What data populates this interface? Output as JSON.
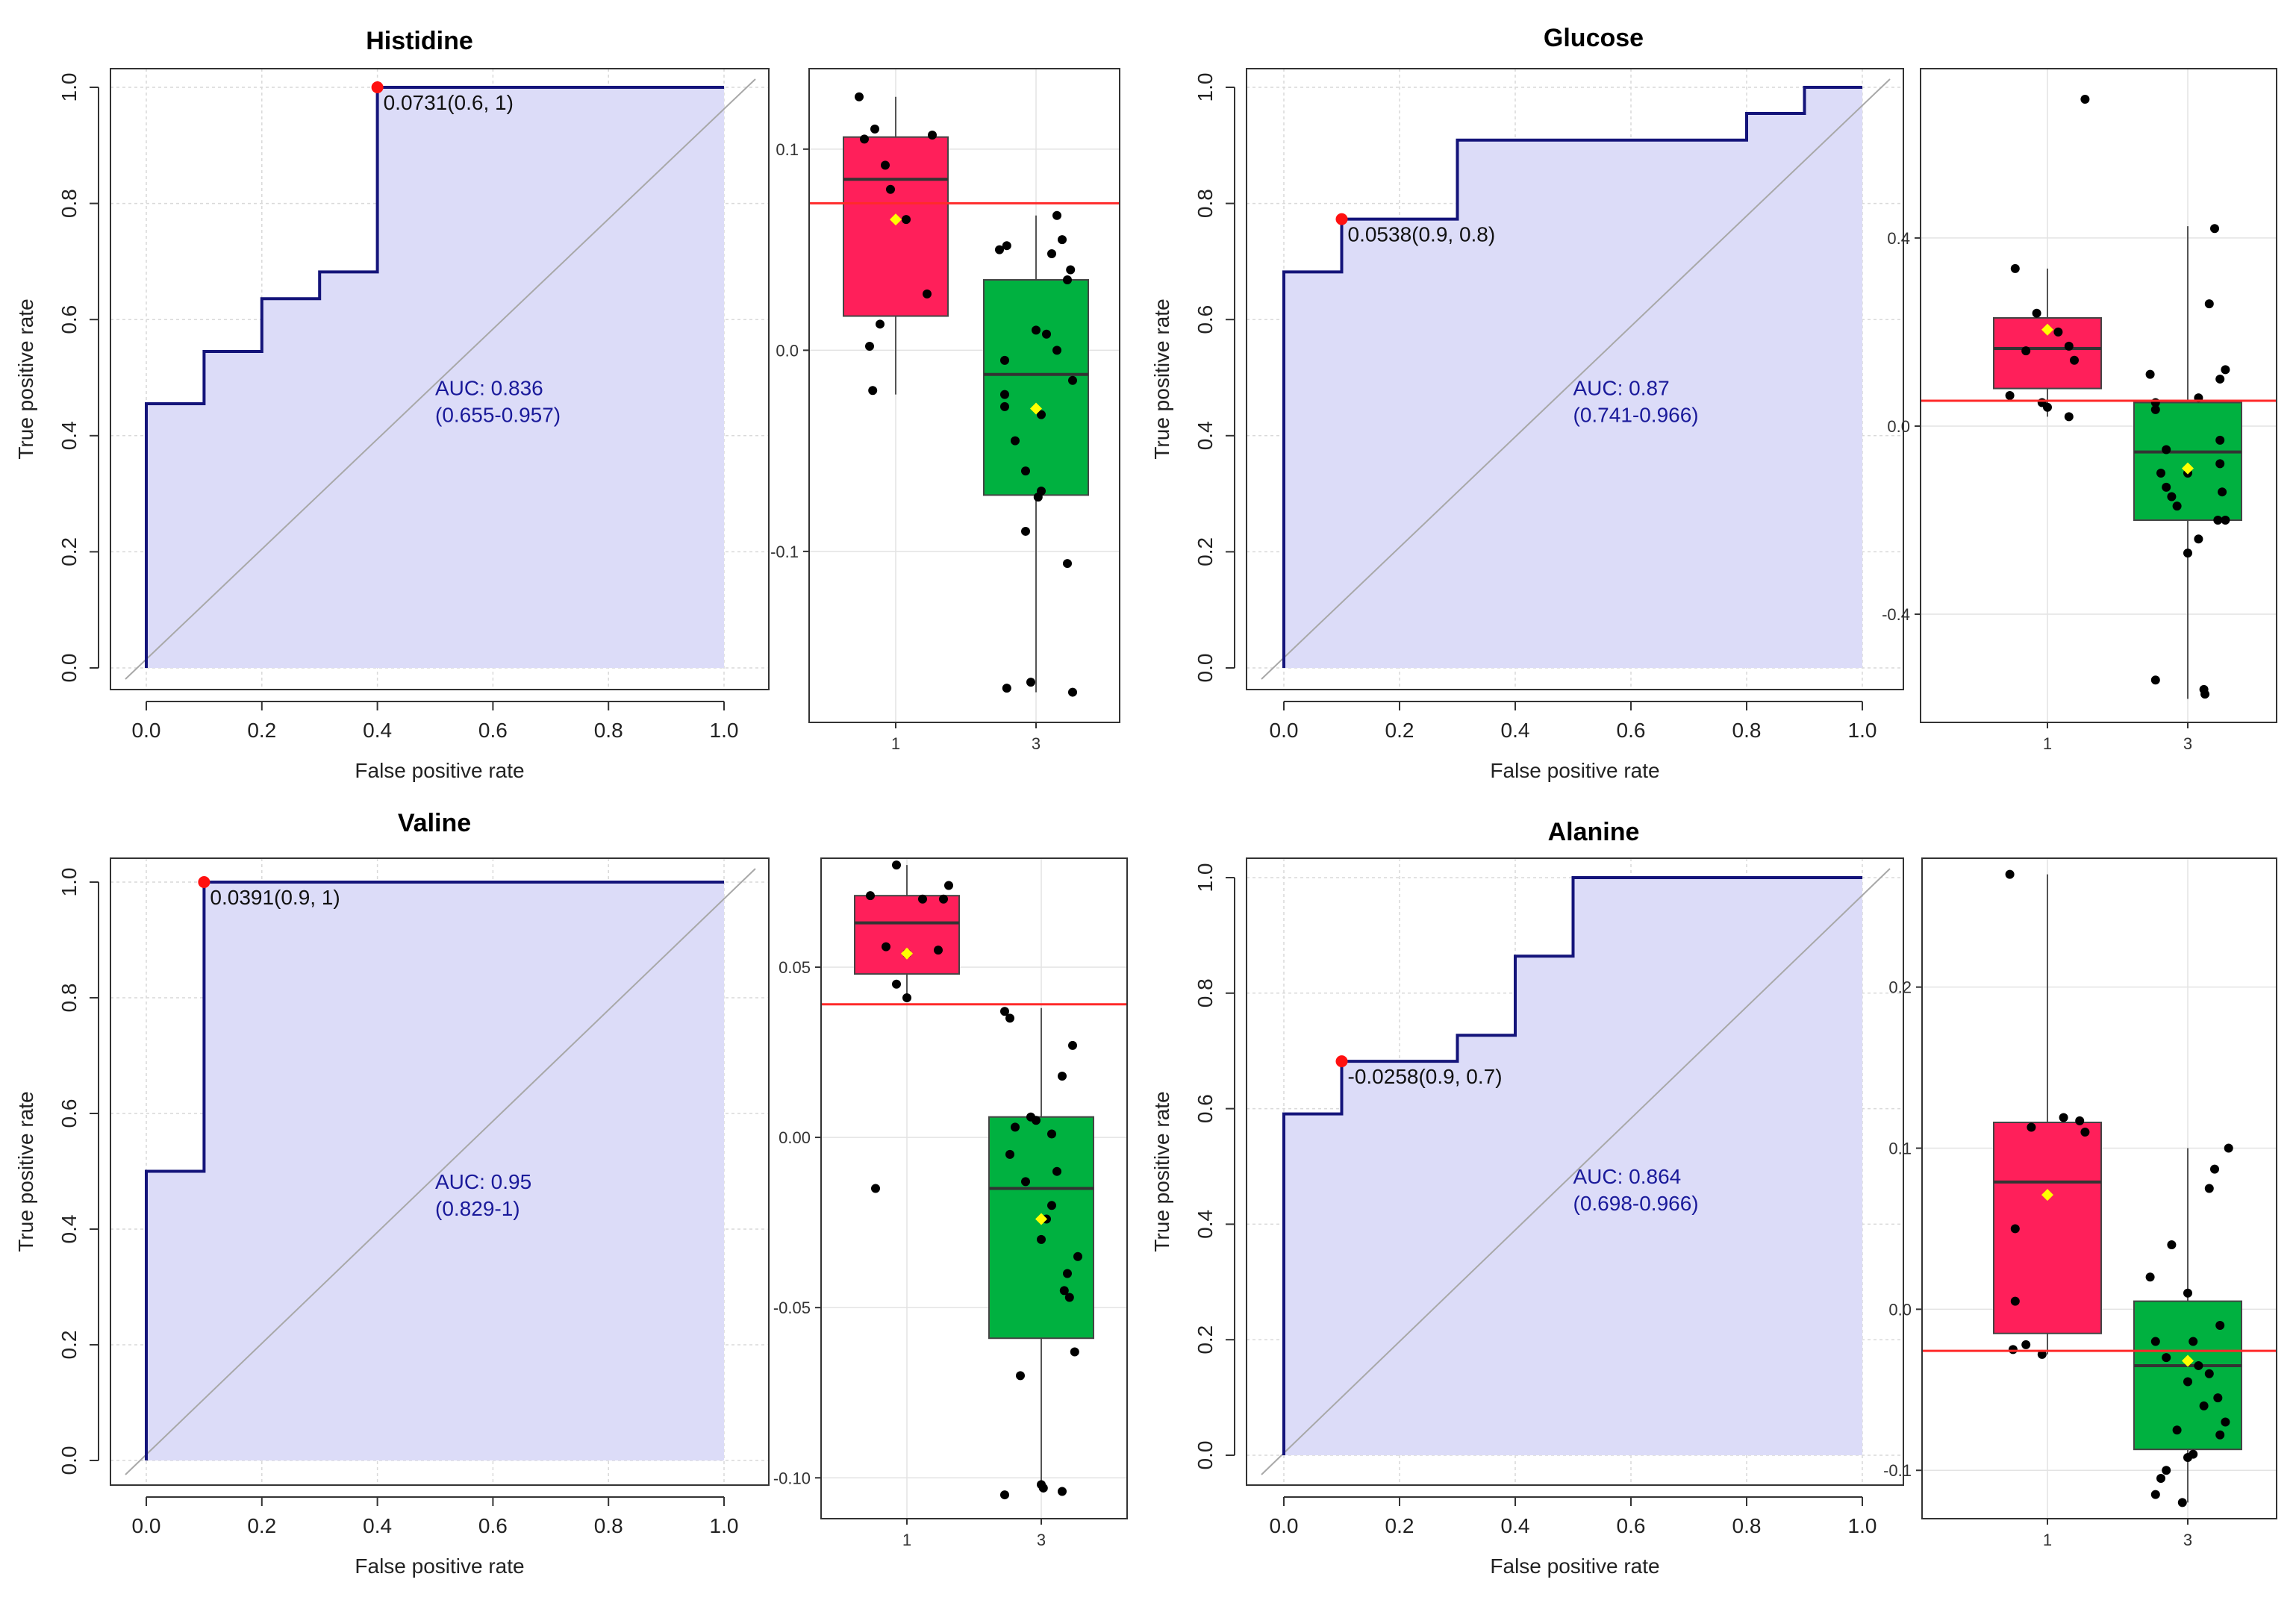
{
  "chart_data": [
    {
      "type": "line",
      "title": "Histidine",
      "xlabel": "False positive rate",
      "ylabel": "True positive rate",
      "xlim": [
        0,
        1
      ],
      "ylim": [
        0,
        1
      ],
      "xticks": [
        "0.0",
        "0.2",
        "0.4",
        "0.6",
        "0.8",
        "1.0"
      ],
      "yticks": [
        "0.0",
        "0.2",
        "0.4",
        "0.6",
        "0.8",
        "1.0"
      ],
      "roc": [
        [
          0,
          0
        ],
        [
          0,
          0.455
        ],
        [
          0.1,
          0.455
        ],
        [
          0.1,
          0.545
        ],
        [
          0.2,
          0.545
        ],
        [
          0.2,
          0.636
        ],
        [
          0.3,
          0.636
        ],
        [
          0.3,
          0.682
        ],
        [
          0.4,
          0.682
        ],
        [
          0.4,
          1
        ],
        [
          1,
          1
        ]
      ],
      "cutoff_point": [
        0.4,
        1
      ],
      "cutoff_label": "0.0731(0.6, 1)",
      "auc_label": "AUC: 0.836",
      "ci_label": "(0.655-0.957)",
      "boxplot": {
        "type": "box",
        "groups": [
          "1",
          "3"
        ],
        "ylim": [
          -0.185,
          0.14
        ],
        "yticks": [
          {
            "v": -0.1,
            "t": "-0.1"
          },
          {
            "v": 0.0,
            "t": "0.0"
          },
          {
            "v": 0.1,
            "t": "0.1"
          }
        ],
        "threshold": 0.0731,
        "colors": [
          "#ff1f5a",
          "#00b140"
        ],
        "stats": [
          {
            "q1": 0.017,
            "median": 0.085,
            "q3": 0.106,
            "wlo": -0.022,
            "whi": 0.126,
            "mean": 0.065
          },
          {
            "q1": -0.072,
            "median": -0.012,
            "q3": 0.035,
            "wlo": -0.17,
            "whi": 0.067,
            "mean": -0.029
          }
        ],
        "points": [
          [
            [
              -0.35,
              0.126
            ],
            [
              -0.3,
              0.105
            ],
            [
              -0.2,
              0.11
            ],
            [
              -0.1,
              0.092
            ],
            [
              -0.05,
              0.08
            ],
            [
              0.1,
              0.065
            ],
            [
              0.35,
              0.107
            ],
            [
              0.3,
              0.028
            ],
            [
              -0.15,
              0.013
            ],
            [
              -0.25,
              0.002
            ],
            [
              -0.22,
              -0.02
            ]
          ],
          [
            [
              -0.35,
              0.05
            ],
            [
              -0.28,
              0.052
            ],
            [
              -0.3,
              -0.005
            ],
            [
              -0.3,
              -0.028
            ],
            [
              -0.2,
              -0.045
            ],
            [
              -0.3,
              -0.022
            ],
            [
              -0.1,
              -0.06
            ],
            [
              0.0,
              0.01
            ],
            [
              0.1,
              0.008
            ],
            [
              0.2,
              0.067
            ],
            [
              0.25,
              0.055
            ],
            [
              0.3,
              0.035
            ],
            [
              0.33,
              0.04
            ],
            [
              0.15,
              0.048
            ],
            [
              0.35,
              -0.015
            ],
            [
              0.05,
              -0.07
            ],
            [
              0.02,
              -0.073
            ],
            [
              -0.1,
              -0.09
            ],
            [
              -0.28,
              -0.168
            ],
            [
              -0.05,
              -0.165
            ],
            [
              0.35,
              -0.17
            ],
            [
              0.3,
              -0.106
            ],
            [
              0.2,
              0.0
            ],
            [
              0.05,
              -0.032
            ]
          ]
        ]
      }
    },
    {
      "type": "line",
      "title": "Glucose",
      "xlabel": "False positive rate",
      "ylabel": "True positive rate",
      "xlim": [
        0,
        1
      ],
      "ylim": [
        0,
        1
      ],
      "xticks": [
        "0.0",
        "0.2",
        "0.4",
        "0.6",
        "0.8",
        "1.0"
      ],
      "yticks": [
        "0.0",
        "0.2",
        "0.4",
        "0.6",
        "0.8",
        "1.0"
      ],
      "roc": [
        [
          0,
          0
        ],
        [
          0,
          0.682
        ],
        [
          0.1,
          0.682
        ],
        [
          0.1,
          0.773
        ],
        [
          0.3,
          0.773
        ],
        [
          0.3,
          0.909
        ],
        [
          0.8,
          0.909
        ],
        [
          0.8,
          0.955
        ],
        [
          0.9,
          0.955
        ],
        [
          0.9,
          1
        ],
        [
          1,
          1
        ]
      ],
      "cutoff_point": [
        0.1,
        0.773
      ],
      "cutoff_label": "0.0538(0.9, 0.8)",
      "auc_label": "AUC: 0.87",
      "ci_label": "(0.741-0.966)",
      "boxplot": {
        "type": "box",
        "groups": [
          "1",
          "3"
        ],
        "ylim": [
          -0.63,
          0.76
        ],
        "yticks": [
          {
            "v": -0.4,
            "t": "-0.4"
          },
          {
            "v": 0.0,
            "t": "0.0"
          },
          {
            "v": 0.4,
            "t": "0.4"
          }
        ],
        "threshold": 0.0538,
        "colors": [
          "#ff1f5a",
          "#00b140"
        ],
        "stats": [
          {
            "q1": 0.08,
            "median": 0.165,
            "q3": 0.23,
            "wlo": 0.02,
            "whi": 0.335,
            "mean": 0.205
          },
          {
            "q1": -0.2,
            "median": -0.055,
            "q3": 0.05,
            "wlo": -0.58,
            "whi": 0.425,
            "mean": -0.09
          }
        ],
        "points": [
          [
            [
              -0.3,
              0.335
            ],
            [
              -0.1,
              0.24
            ],
            [
              0.1,
              0.2
            ],
            [
              -0.2,
              0.16
            ],
            [
              0.2,
              0.17
            ],
            [
              0.25,
              0.14
            ],
            [
              -0.35,
              0.065
            ],
            [
              -0.05,
              0.05
            ],
            [
              0.0,
              0.04
            ],
            [
              0.2,
              0.02
            ],
            [
              0.35,
              0.695
            ]
          ],
          [
            [
              -0.35,
              0.11
            ],
            [
              -0.3,
              0.05
            ],
            [
              -0.3,
              0.035
            ],
            [
              -0.25,
              -0.1
            ],
            [
              -0.2,
              -0.13
            ],
            [
              -0.15,
              -0.15
            ],
            [
              -0.1,
              -0.17
            ],
            [
              0.0,
              -0.1
            ],
            [
              0.1,
              0.06
            ],
            [
              0.2,
              0.26
            ],
            [
              0.25,
              0.42
            ],
            [
              0.3,
              0.1
            ],
            [
              0.35,
              0.12
            ],
            [
              0.3,
              -0.08
            ],
            [
              0.28,
              -0.2
            ],
            [
              0.1,
              -0.24
            ],
            [
              0.0,
              -0.27
            ],
            [
              -0.3,
              -0.54
            ],
            [
              0.15,
              -0.56
            ],
            [
              0.16,
              -0.57
            ],
            [
              0.35,
              -0.2
            ],
            [
              0.32,
              -0.14
            ],
            [
              0.3,
              -0.03
            ],
            [
              -0.2,
              -0.05
            ]
          ]
        ]
      }
    },
    {
      "type": "line",
      "title": "Valine",
      "xlabel": "False positive rate",
      "ylabel": "True positive rate",
      "xlim": [
        0,
        1
      ],
      "ylim": [
        0,
        1
      ],
      "xticks": [
        "0.0",
        "0.2",
        "0.4",
        "0.6",
        "0.8",
        "1.0"
      ],
      "yticks": [
        "0.0",
        "0.2",
        "0.4",
        "0.6",
        "0.8",
        "1.0"
      ],
      "roc": [
        [
          0,
          0
        ],
        [
          0,
          0.5
        ],
        [
          0.1,
          0.5
        ],
        [
          0.1,
          1
        ],
        [
          1,
          1
        ]
      ],
      "cutoff_point": [
        0.1,
        1
      ],
      "cutoff_label": "0.0391(0.9, 1)",
      "auc_label": "AUC: 0.95",
      "ci_label": "(0.829-1)",
      "boxplot": {
        "type": "box",
        "groups": [
          "1",
          "3"
        ],
        "ylim": [
          -0.112,
          0.082
        ],
        "yticks": [
          {
            "v": -0.1,
            "t": "-0.10"
          },
          {
            "v": -0.05,
            "t": "-0.05"
          },
          {
            "v": 0.0,
            "t": "0.00"
          },
          {
            "v": 0.05,
            "t": "0.05"
          }
        ],
        "threshold": 0.0391,
        "colors": [
          "#ff1f5a",
          "#00b140"
        ],
        "stats": [
          {
            "q1": 0.048,
            "median": 0.063,
            "q3": 0.071,
            "wlo": 0.04,
            "whi": 0.08,
            "mean": 0.054
          },
          {
            "q1": -0.059,
            "median": -0.015,
            "q3": 0.006,
            "wlo": -0.103,
            "whi": 0.038,
            "mean": -0.024
          }
        ],
        "points": [
          [
            [
              -0.35,
              0.071
            ],
            [
              -0.1,
              0.08
            ],
            [
              0.15,
              0.07
            ],
            [
              0.35,
              0.07
            ],
            [
              0.4,
              0.074
            ],
            [
              -0.2,
              0.056
            ],
            [
              0.3,
              0.055
            ],
            [
              0.0,
              0.054
            ],
            [
              -0.1,
              0.045
            ],
            [
              0.0,
              0.041
            ],
            [
              -0.3,
              -0.015
            ]
          ],
          [
            [
              -0.35,
              0.037
            ],
            [
              -0.3,
              0.035
            ],
            [
              -0.1,
              0.006
            ],
            [
              -0.25,
              0.003
            ],
            [
              -0.3,
              -0.005
            ],
            [
              -0.05,
              0.005
            ],
            [
              0.2,
              0.018
            ],
            [
              0.3,
              0.027
            ],
            [
              0.35,
              -0.035
            ],
            [
              0.22,
              -0.045
            ],
            [
              0.27,
              -0.047
            ],
            [
              0.32,
              -0.063
            ],
            [
              0.0,
              -0.03
            ],
            [
              0.05,
              -0.024
            ],
            [
              0.1,
              -0.02
            ],
            [
              0.15,
              -0.01
            ],
            [
              -0.2,
              -0.07
            ],
            [
              0.0,
              -0.102
            ],
            [
              0.02,
              -0.103
            ],
            [
              -0.35,
              -0.105
            ],
            [
              0.2,
              -0.104
            ],
            [
              -0.15,
              -0.013
            ],
            [
              0.1,
              0.001
            ],
            [
              0.25,
              -0.04
            ]
          ]
        ]
      }
    },
    {
      "type": "line",
      "title": "Alanine",
      "xlabel": "False positive rate",
      "ylabel": "True positive rate",
      "xlim": [
        0,
        1
      ],
      "ylim": [
        0,
        1
      ],
      "xticks": [
        "0.0",
        "0.2",
        "0.4",
        "0.6",
        "0.8",
        "1.0"
      ],
      "yticks": [
        "0.0",
        "0.2",
        "0.4",
        "0.6",
        "0.8",
        "1.0"
      ],
      "roc": [
        [
          0,
          0
        ],
        [
          0,
          0.591
        ],
        [
          0.1,
          0.591
        ],
        [
          0.1,
          0.682
        ],
        [
          0.3,
          0.682
        ],
        [
          0.3,
          0.727
        ],
        [
          0.4,
          0.727
        ],
        [
          0.4,
          0.864
        ],
        [
          0.5,
          0.864
        ],
        [
          0.5,
          1
        ],
        [
          1,
          1
        ]
      ],
      "cutoff_point": [
        0.1,
        0.682
      ],
      "cutoff_label": "-0.0258(0.9, 0.7)",
      "auc_label": "AUC: 0.864",
      "ci_label": "(0.698-0.966)",
      "boxplot": {
        "type": "box",
        "groups": [
          "1",
          "3"
        ],
        "ylim": [
          -0.13,
          0.28
        ],
        "yticks": [
          {
            "v": -0.1,
            "t": "-0.1"
          },
          {
            "v": 0.0,
            "t": "0.0"
          },
          {
            "v": 0.1,
            "t": "0.1"
          },
          {
            "v": 0.2,
            "t": "0.2"
          }
        ],
        "threshold": -0.0258,
        "colors": [
          "#ff1f5a",
          "#00b140"
        ],
        "stats": [
          {
            "q1": -0.015,
            "median": 0.079,
            "q3": 0.116,
            "wlo": -0.028,
            "whi": 0.27,
            "mean": 0.071
          },
          {
            "q1": -0.087,
            "median": -0.035,
            "q3": 0.005,
            "wlo": -0.12,
            "whi": 0.1,
            "mean": -0.032
          }
        ],
        "points": [
          [
            [
              -0.35,
              0.27
            ],
            [
              -0.3,
              0.05
            ],
            [
              -0.3,
              0.005
            ],
            [
              -0.32,
              -0.025
            ],
            [
              -0.2,
              -0.022
            ],
            [
              -0.05,
              -0.028
            ],
            [
              -0.15,
              0.113
            ],
            [
              0.15,
              0.119
            ],
            [
              0.3,
              0.117
            ],
            [
              0.35,
              0.11
            ]
          ],
          [
            [
              -0.35,
              0.02
            ],
            [
              -0.3,
              -0.02
            ],
            [
              -0.3,
              -0.115
            ],
            [
              -0.25,
              -0.105
            ],
            [
              -0.2,
              -0.1
            ],
            [
              -0.15,
              0.04
            ],
            [
              0.0,
              0.01
            ],
            [
              0.2,
              0.075
            ],
            [
              0.25,
              0.087
            ],
            [
              0.38,
              0.1
            ],
            [
              0.35,
              -0.07
            ],
            [
              0.3,
              -0.078
            ],
            [
              0.28,
              -0.055
            ],
            [
              0.0,
              -0.092
            ],
            [
              0.05,
              -0.09
            ],
            [
              -0.05,
              -0.12
            ],
            [
              0.0,
              -0.045
            ],
            [
              -0.2,
              -0.03
            ],
            [
              0.1,
              -0.035
            ],
            [
              0.2,
              -0.04
            ],
            [
              -0.1,
              -0.075
            ],
            [
              0.15,
              -0.06
            ],
            [
              0.3,
              -0.01
            ],
            [
              0.05,
              -0.02
            ]
          ]
        ]
      }
    }
  ]
}
